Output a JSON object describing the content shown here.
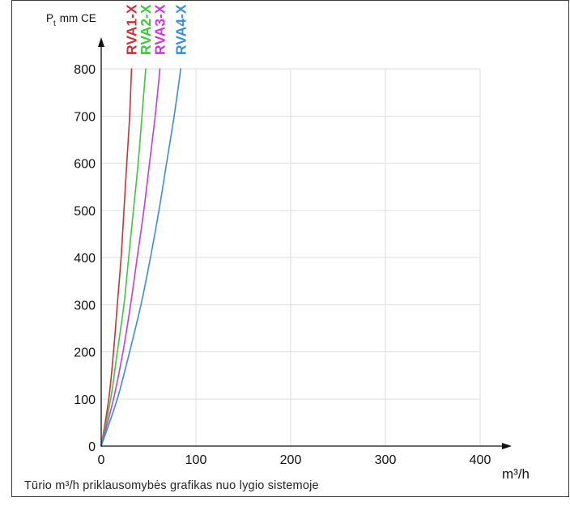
{
  "chart_data": {
    "type": "line",
    "ylabel": {
      "symbol": "P",
      "subscript": "t",
      "unit": "mm CE"
    },
    "xlabel": "m³/h",
    "caption": "Tūrio m³/h priklausomybės grafikas nuo lygio sistemoje",
    "x_ticks": [
      0,
      100,
      200,
      300,
      400
    ],
    "y_ticks": [
      0,
      100,
      200,
      300,
      400,
      500,
      600,
      700,
      800
    ],
    "xlim": [
      0,
      400
    ],
    "ylim": [
      0,
      800
    ],
    "grid": true,
    "legend": "top",
    "series": [
      {
        "name": "RVA1-X",
        "color": "#c8323c",
        "x": [
          0,
          8,
          13,
          17,
          21,
          24,
          27,
          30,
          32
        ],
        "y": [
          0,
          100,
          200,
          300,
          400,
          500,
          600,
          700,
          800
        ]
      },
      {
        "name": "RVA2-X",
        "color": "#3cc83c",
        "x": [
          0,
          10,
          17,
          24,
          29,
          34,
          39,
          43,
          47
        ],
        "y": [
          0,
          100,
          200,
          300,
          400,
          500,
          600,
          700,
          800
        ]
      },
      {
        "name": "RVA3-X",
        "color": "#c83cd2",
        "x": [
          0,
          13,
          23,
          31,
          38,
          45,
          51,
          57,
          62
        ],
        "y": [
          0,
          100,
          200,
          300,
          400,
          500,
          600,
          700,
          800
        ]
      },
      {
        "name": "RVA4-X",
        "color": "#3c8cdc",
        "x": [
          0,
          17,
          30,
          42,
          52,
          61,
          69,
          77,
          84
        ],
        "y": [
          0,
          100,
          200,
          300,
          400,
          500,
          600,
          700,
          800
        ]
      }
    ]
  }
}
